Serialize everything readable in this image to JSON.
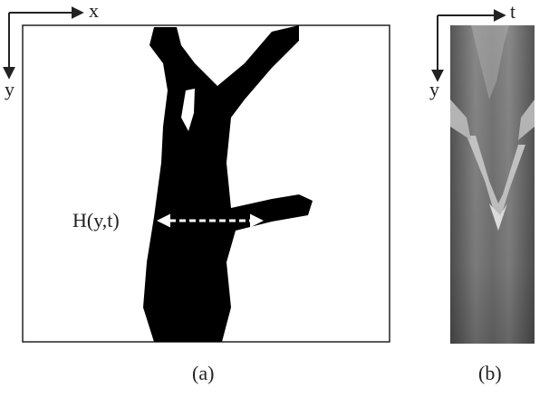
{
  "panel_a": {
    "axis_x": "x",
    "axis_y": "y",
    "annotation": "H(y,t)",
    "caption": "(a)"
  },
  "panel_b": {
    "axis_t": "t",
    "axis_y": "y",
    "caption": "(b)"
  }
}
